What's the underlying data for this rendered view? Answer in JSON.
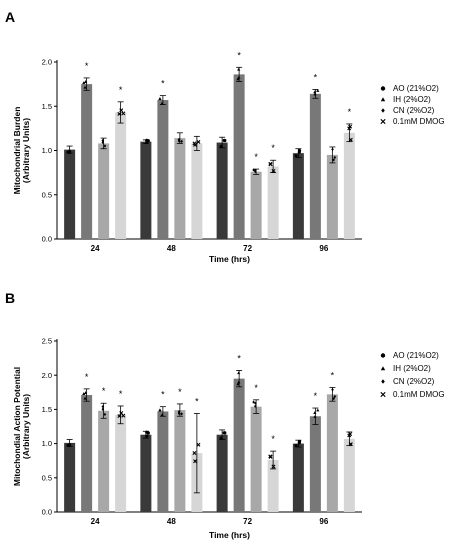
{
  "colors": [
    "#3a3a3a",
    "#787878",
    "#a8a8a8",
    "#d6d6d6"
  ],
  "markers": [
    "circle",
    "triangle",
    "diamond",
    "cross"
  ],
  "chart_data": [
    {
      "panel": "A",
      "type": "bar",
      "categories": [
        "24",
        "48",
        "72",
        "96"
      ],
      "xlabel": "Time (hrs)",
      "ylabel": [
        "Mitochondrial Burden",
        "(Arbitrary Units)"
      ],
      "ylim": [
        0,
        2.0
      ],
      "yticks": [
        "0.0",
        "0.5",
        "1.0",
        "1.5",
        "2.0"
      ],
      "legend_position": "right",
      "series": [
        {
          "name": "AO (21%O2)",
          "values": [
            1.01,
            1.1,
            1.09,
            0.97
          ],
          "errors": [
            0.04,
            0.02,
            0.06,
            0.05
          ],
          "sig": [
            false,
            false,
            false,
            false
          ]
        },
        {
          "name": "IH (2%O2)",
          "values": [
            1.75,
            1.57,
            1.86,
            1.64
          ],
          "errors": [
            0.07,
            0.05,
            0.08,
            0.05
          ],
          "sig": [
            true,
            true,
            true,
            true
          ]
        },
        {
          "name": "CN (2%O2)",
          "values": [
            1.08,
            1.14,
            0.76,
            0.95
          ],
          "errors": [
            0.06,
            0.06,
            0.03,
            0.09
          ],
          "sig": [
            false,
            false,
            true,
            false
          ]
        },
        {
          "name": "0.1mM DMOG",
          "values": [
            1.43,
            1.08,
            0.82,
            1.2
          ],
          "errors": [
            0.12,
            0.08,
            0.07,
            0.1
          ],
          "sig": [
            true,
            false,
            true,
            true
          ]
        }
      ]
    },
    {
      "panel": "B",
      "type": "bar",
      "categories": [
        "24",
        "48",
        "72",
        "96"
      ],
      "xlabel": "Time (hrs)",
      "ylabel": [
        "Mitochondial Action Potential",
        "(Arbitrary Units)"
      ],
      "ylim": [
        0,
        2.5
      ],
      "yticks": [
        "0.0",
        "0.5",
        "1.0",
        "1.5",
        "2.0",
        "2.5"
      ],
      "legend_position": "right",
      "series": [
        {
          "name": "AO (21%O2)",
          "values": [
            1.01,
            1.13,
            1.13,
            1.0
          ],
          "errors": [
            0.05,
            0.05,
            0.07,
            0.05
          ],
          "sig": [
            false,
            false,
            false,
            false
          ]
        },
        {
          "name": "IH (2%O2)",
          "values": [
            1.71,
            1.47,
            1.95,
            1.4
          ],
          "errors": [
            0.09,
            0.07,
            0.12,
            0.12
          ],
          "sig": [
            true,
            true,
            true,
            true
          ]
        },
        {
          "name": "CN (2%O2)",
          "values": [
            1.48,
            1.49,
            1.54,
            1.72
          ],
          "errors": [
            0.11,
            0.09,
            0.1,
            0.1
          ],
          "sig": [
            true,
            true,
            true,
            true
          ]
        },
        {
          "name": "0.1mM DMOG",
          "values": [
            1.42,
            0.86,
            0.76,
            1.07
          ],
          "errors": [
            0.13,
            0.58,
            0.13,
            0.1
          ],
          "sig": [
            true,
            true,
            true,
            false
          ]
        }
      ]
    }
  ]
}
